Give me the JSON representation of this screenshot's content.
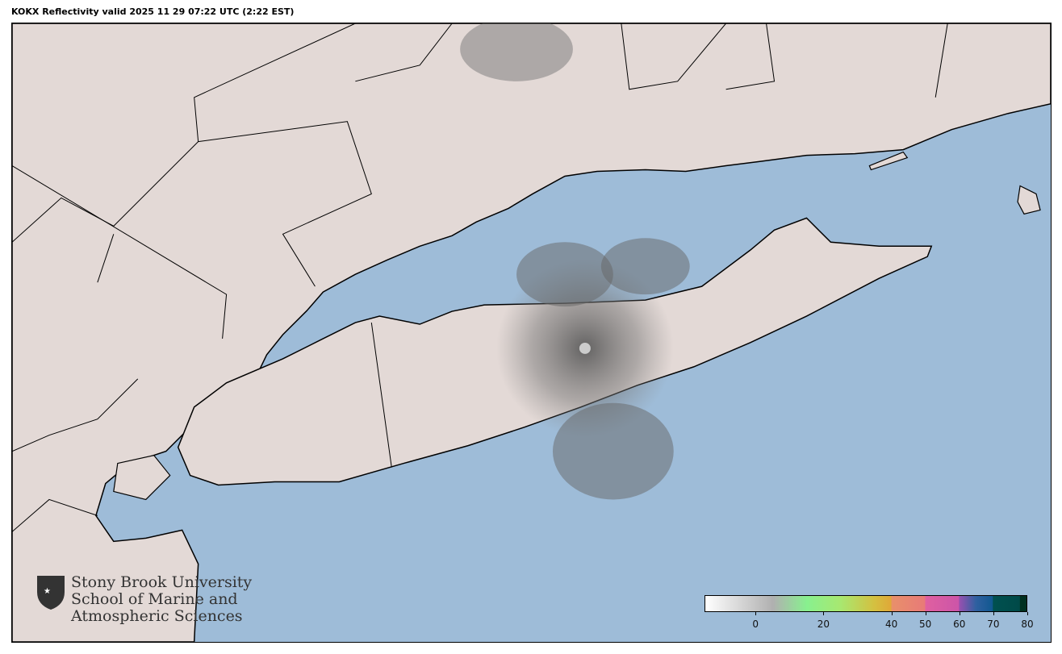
{
  "title": "KOKX Reflectivity valid 2025 11 29 07:22 UTC (2:22 EST)",
  "colors": {
    "land": "#e3d9d6",
    "water": "#9ebcd8",
    "border": "#000000",
    "echo": "#7a7a7a"
  },
  "colorbar": {
    "range": [
      -15,
      80
    ],
    "ticks": [
      "0",
      "20",
      "40",
      "50",
      "60",
      "70",
      "80"
    ],
    "stops": [
      {
        "value": -15,
        "color": "#ffffff"
      },
      {
        "value": 5,
        "color": "#b0b0b0"
      },
      {
        "value": 15,
        "color": "#88f08f"
      },
      {
        "value": 25,
        "color": "#a8e870"
      },
      {
        "value": 35,
        "color": "#d4c040"
      },
      {
        "value": 40,
        "color": "#e0a838"
      },
      {
        "value": 40.1,
        "color": "#e8906a"
      },
      {
        "value": 50,
        "color": "#e87a78"
      },
      {
        "value": 50.1,
        "color": "#e060a0"
      },
      {
        "value": 60,
        "color": "#cc55a8"
      },
      {
        "value": 60.1,
        "color": "#9950b0"
      },
      {
        "value": 65,
        "color": "#3060a0"
      },
      {
        "value": 70,
        "color": "#105890"
      },
      {
        "value": 70.1,
        "color": "#005050"
      },
      {
        "value": 78,
        "color": "#004a48"
      },
      {
        "value": 78.1,
        "color": "#003020"
      }
    ]
  },
  "logo": {
    "line1": "Stony Brook University",
    "line2": "School of Marine and",
    "line3": "Atmospheric Sciences"
  }
}
